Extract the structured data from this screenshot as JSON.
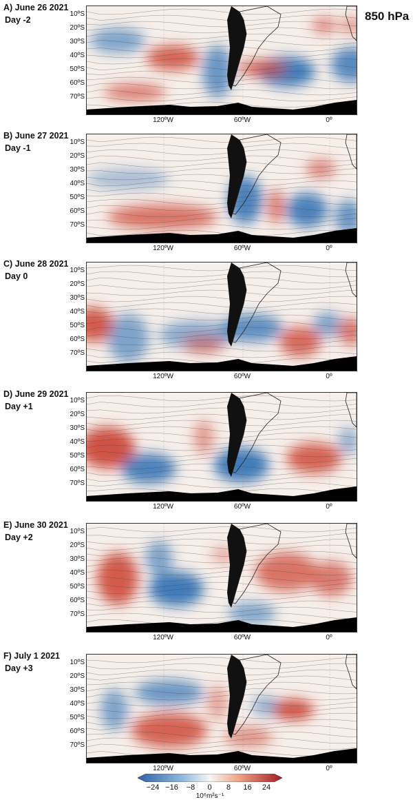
{
  "pressure_level": "850 hPa",
  "panels": [
    {
      "label": "A) June 26 2021",
      "day": "Day -2"
    },
    {
      "label": "B) June 27 2021",
      "day": "Day -1"
    },
    {
      "label": "C) June 28 2021",
      "day": "Day 0"
    },
    {
      "label": "D) June 29 2021",
      "day": "Day +1"
    },
    {
      "label": "E) June 30 2021",
      "day": "Day +2"
    },
    {
      "label": "F) July 1 2021",
      "day": "Day +3"
    }
  ],
  "lat_labels": [
    "10ºS",
    "20ºS",
    "30ºS",
    "40ºS",
    "50ºS",
    "60ºS",
    "70ºS"
  ],
  "lon_labels": [
    "120ºW",
    "60ºW",
    "0º"
  ],
  "colorbar": {
    "ticks": [
      "−24",
      "−16",
      "−8",
      "0",
      "8",
      "16",
      "24"
    ],
    "units": "10⁶m²s⁻¹",
    "colors": [
      "#2f63a8",
      "#6d9fcd",
      "#b8d2e8",
      "#f4f4f4",
      "#f2b8a0",
      "#d8644c",
      "#a41c24"
    ]
  }
}
